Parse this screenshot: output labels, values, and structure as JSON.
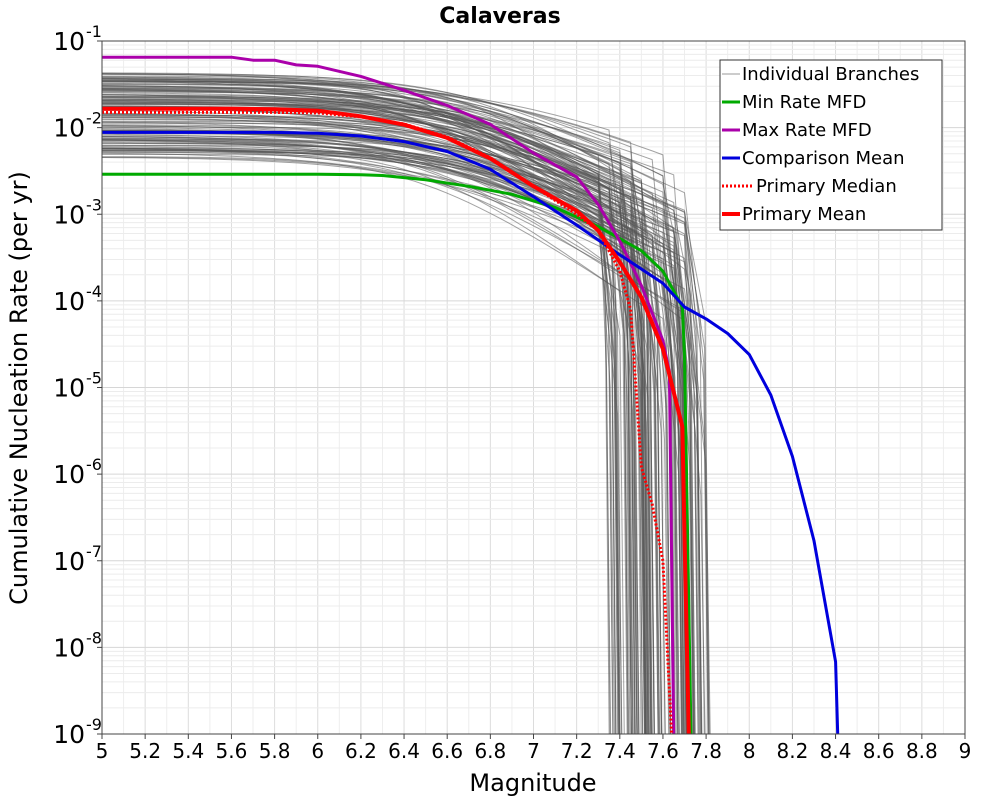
{
  "chart_data": {
    "type": "line",
    "title": "Calaveras",
    "xlabel": "Magnitude",
    "ylabel": "Cumulative Nucleation Rate (per yr)",
    "xlim": [
      5,
      9
    ],
    "ylim": [
      1e-09,
      0.1
    ],
    "yscale": "log",
    "grid": true,
    "legend_position": "top-right",
    "x_ticks": [
      "5",
      "5.2",
      "5.4",
      "5.6",
      "5.8",
      "6",
      "6.2",
      "6.4",
      "6.6",
      "6.8",
      "7",
      "7.2",
      "7.4",
      "7.6",
      "7.8",
      "8",
      "8.2",
      "8.4",
      "8.6",
      "8.8",
      "9"
    ],
    "y_ticks": [
      {
        "base": "10",
        "exp": "-1",
        "value": 0.1
      },
      {
        "base": "10",
        "exp": "-2",
        "value": 0.01
      },
      {
        "base": "10",
        "exp": "-3",
        "value": 0.001
      },
      {
        "base": "10",
        "exp": "-4",
        "value": 0.0001
      },
      {
        "base": "10",
        "exp": "-5",
        "value": 1e-05
      },
      {
        "base": "10",
        "exp": "-6",
        "value": 1e-06
      },
      {
        "base": "10",
        "exp": "-7",
        "value": 1e-07
      },
      {
        "base": "10",
        "exp": "-8",
        "value": 1e-08
      },
      {
        "base": "10",
        "exp": "-9",
        "value": 1e-09
      }
    ],
    "series": [
      {
        "name": "Min Rate MFD",
        "color": "#00aa00",
        "dash": "solid",
        "x": [
          5.0,
          5.2,
          5.4,
          5.6,
          5.8,
          6.0,
          6.2,
          6.3,
          6.5,
          6.7,
          6.9,
          7.1,
          7.3,
          7.5,
          7.6,
          7.69,
          7.7,
          7.73
        ],
        "y": [
          0.0029,
          0.0029,
          0.0029,
          0.0029,
          0.0029,
          0.0029,
          0.00285,
          0.0028,
          0.0025,
          0.0021,
          0.0017,
          0.0012,
          0.00072,
          0.00038,
          0.00022,
          8.5e-05,
          2.3e-05,
          1e-09
        ]
      },
      {
        "name": "Max Rate MFD",
        "color": "#aa00aa",
        "dash": "solid",
        "x": [
          5.0,
          5.2,
          5.4,
          5.6,
          5.7,
          5.8,
          5.9,
          6.0,
          6.2,
          6.4,
          6.6,
          6.8,
          7.0,
          7.2,
          7.3,
          7.4,
          7.5,
          7.6,
          7.63,
          7.65
        ],
        "y": [
          0.065,
          0.065,
          0.065,
          0.065,
          0.06,
          0.06,
          0.053,
          0.051,
          0.039,
          0.027,
          0.018,
          0.0109,
          0.0051,
          0.0027,
          0.0013,
          0.00049,
          0.00015,
          3.5e-05,
          1.5e-05,
          1e-09
        ]
      },
      {
        "name": "Comparison Mean",
        "color": "#0000dd",
        "dash": "solid",
        "x": [
          5.0,
          5.2,
          5.4,
          5.6,
          5.8,
          6.0,
          6.2,
          6.4,
          6.6,
          6.8,
          7.0,
          7.2,
          7.4,
          7.6,
          7.7,
          7.8,
          7.9,
          8.0,
          8.1,
          8.2,
          8.3,
          8.4,
          8.41
        ],
        "y": [
          0.0088,
          0.0088,
          0.0088,
          0.0088,
          0.0088,
          0.0086,
          0.008,
          0.0069,
          0.0053,
          0.0033,
          0.0016,
          0.00075,
          0.00034,
          0.00016,
          8.5e-05,
          6.2e-05,
          4.2e-05,
          2.4e-05,
          8.2e-06,
          1.6e-06,
          1.7e-07,
          6.8e-09,
          1e-09
        ]
      },
      {
        "name": "Primary Median",
        "color": "#ff0000",
        "dash": "dotted",
        "x": [
          5.0,
          5.2,
          5.4,
          5.6,
          5.8,
          6.0,
          6.2,
          6.4,
          6.6,
          6.8,
          7.0,
          7.2,
          7.3,
          7.4,
          7.45,
          7.5,
          7.55,
          7.6,
          7.64
        ],
        "y": [
          0.015,
          0.015,
          0.015,
          0.015,
          0.015,
          0.0148,
          0.0133,
          0.011,
          0.0078,
          0.0045,
          0.0021,
          0.001,
          0.00065,
          0.00022,
          8e-05,
          1.2e-06,
          4.5e-07,
          1e-07,
          1e-09
        ]
      },
      {
        "name": "Primary Mean",
        "color": "#ff0000",
        "dash": "solid",
        "x": [
          5.0,
          5.2,
          5.4,
          5.6,
          5.8,
          6.0,
          6.2,
          6.4,
          6.6,
          6.8,
          7.0,
          7.2,
          7.3,
          7.4,
          7.5,
          7.6,
          7.69,
          7.7,
          7.72
        ],
        "y": [
          0.0165,
          0.0165,
          0.0165,
          0.0165,
          0.0163,
          0.0157,
          0.0135,
          0.0108,
          0.0076,
          0.0044,
          0.0021,
          0.0011,
          0.00065,
          0.00028,
          0.00011,
          2.8e-05,
          3.5e-06,
          2e-07,
          1e-09
        ]
      }
    ],
    "background_branches": {
      "name": "Individual Branches",
      "color": "#555555",
      "count": 150,
      "rate_range_at_m5": [
        0.0045,
        0.045
      ],
      "drop_magnitude_range": [
        7.32,
        7.74
      ]
    },
    "legend": [
      {
        "label": "Individual Branches",
        "color": "#999999",
        "dash": "solid",
        "width": 1
      },
      {
        "label": "Min Rate MFD",
        "color": "#00aa00",
        "dash": "solid",
        "width": 3
      },
      {
        "label": "Max Rate MFD",
        "color": "#aa00aa",
        "dash": "solid",
        "width": 3
      },
      {
        "label": "Comparison Mean",
        "color": "#0000dd",
        "dash": "solid",
        "width": 3
      },
      {
        "label": "Primary Median",
        "color": "#ff0000",
        "dash": "dotted",
        "width": 3
      },
      {
        "label": "Primary Mean",
        "color": "#ff0000",
        "dash": "solid",
        "width": 4
      }
    ]
  }
}
